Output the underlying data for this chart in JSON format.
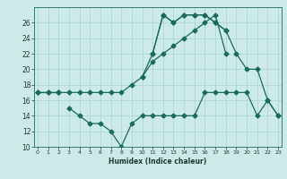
{
  "xlabel": "Humidex (Indice chaleur)",
  "background_color": "#cceae7",
  "line_color": "#1a6b5a",
  "grid_color": "#aad4ce",
  "x_values": [
    0,
    1,
    2,
    3,
    4,
    5,
    6,
    7,
    8,
    9,
    10,
    11,
    12,
    13,
    14,
    15,
    16,
    17,
    18,
    19,
    20,
    21,
    22,
    23
  ],
  "line_upper_main": [
    null,
    null,
    null,
    null,
    null,
    null,
    null,
    null,
    null,
    null,
    null,
    22,
    27,
    26,
    27,
    27,
    27,
    26,
    25,
    null,
    null,
    null,
    null,
    null
  ],
  "line_upper_full": [
    17,
    17,
    17,
    null,
    null,
    null,
    null,
    null,
    null,
    null,
    19,
    22,
    27,
    26,
    27,
    27,
    27,
    26,
    25,
    22,
    20,
    20,
    16,
    14
  ],
  "line_diag": [
    17,
    17,
    17,
    17,
    17,
    17,
    17,
    17,
    17,
    18,
    19,
    21,
    22,
    23,
    24,
    25,
    26,
    27,
    22,
    null,
    null,
    null,
    null,
    null
  ],
  "line_lower_main": [
    null,
    null,
    null,
    15,
    14,
    13,
    13,
    12,
    10,
    13,
    14,
    14,
    14,
    14,
    14,
    14,
    17,
    17,
    17,
    17,
    17,
    14,
    16,
    14
  ],
  "line_lower_short": [
    null,
    null,
    null,
    15,
    14,
    13,
    13,
    12,
    10,
    13,
    14,
    14,
    14,
    14,
    14,
    14,
    null,
    null,
    null,
    null,
    null,
    null,
    null,
    null
  ],
  "ylim_min": 10,
  "ylim_max": 28,
  "yticks": [
    10,
    12,
    14,
    16,
    18,
    20,
    22,
    24,
    26
  ],
  "xticks": [
    0,
    1,
    2,
    3,
    4,
    5,
    6,
    7,
    8,
    9,
    10,
    11,
    12,
    13,
    14,
    15,
    16,
    17,
    18,
    19,
    20,
    21,
    22,
    23
  ],
  "xlim_min": -0.3,
  "xlim_max": 23.3
}
